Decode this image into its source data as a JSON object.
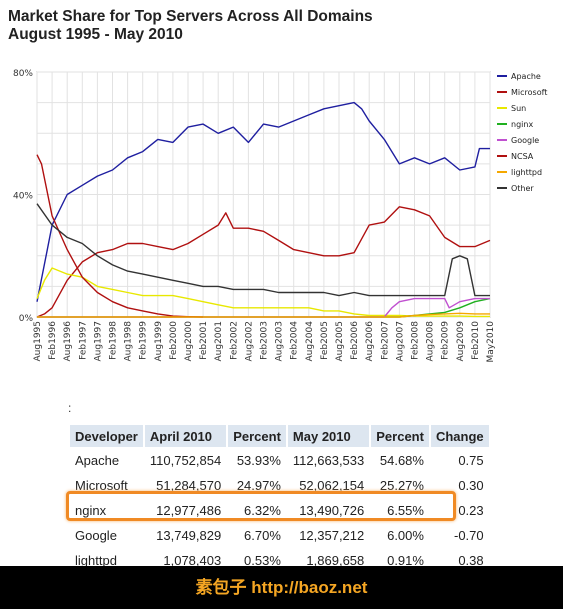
{
  "header": {
    "title_line1": "Market Share for Top Servers Across All Domains",
    "title_line2": "August 1995 - May 2010"
  },
  "chart_data": {
    "type": "line",
    "title": "Market Share for Top Servers Across All Domains August 1995 - May 2010",
    "xlabel": "",
    "ylabel": "",
    "ylim": [
      0,
      80
    ],
    "yticks": [
      "0%",
      "40%",
      "80%"
    ],
    "grid": true,
    "legend_position": "right",
    "x_ticks": [
      "Aug1995",
      "Feb1996",
      "Aug1996",
      "Feb1997",
      "Aug1997",
      "Feb1998",
      "Aug1998",
      "Feb1999",
      "Aug1999",
      "Feb2000",
      "Aug2000",
      "Feb2001",
      "Aug2001",
      "Feb2002",
      "Aug2002",
      "Feb2003",
      "Aug2003",
      "Feb2004",
      "Aug2004",
      "Feb2005",
      "Aug2005",
      "Feb2006",
      "Aug2006",
      "Feb2007",
      "Aug2007",
      "Feb2008",
      "Aug2008",
      "Feb2009",
      "Aug2009",
      "Feb2010",
      "May2010"
    ],
    "series": [
      {
        "name": "Apache",
        "color": "#1f1fa0",
        "points": [
          [
            0,
            5
          ],
          [
            0.6,
            20
          ],
          [
            1,
            30
          ],
          [
            2,
            40
          ],
          [
            3,
            43
          ],
          [
            4,
            46
          ],
          [
            5,
            48
          ],
          [
            6,
            52
          ],
          [
            7,
            54
          ],
          [
            8,
            58
          ],
          [
            9,
            57
          ],
          [
            10,
            62
          ],
          [
            11,
            63
          ],
          [
            12,
            60
          ],
          [
            13,
            62
          ],
          [
            14,
            57
          ],
          [
            15,
            63
          ],
          [
            16,
            62
          ],
          [
            17,
            64
          ],
          [
            18,
            66
          ],
          [
            19,
            68
          ],
          [
            20,
            69
          ],
          [
            21,
            70
          ],
          [
            21.5,
            68
          ],
          [
            22,
            64
          ],
          [
            23,
            58
          ],
          [
            24,
            50
          ],
          [
            25,
            52
          ],
          [
            26,
            50
          ],
          [
            27,
            52
          ],
          [
            28,
            48
          ],
          [
            29,
            49
          ],
          [
            29.3,
            55
          ],
          [
            30,
            55
          ]
        ]
      },
      {
        "name": "Microsoft",
        "color": "#b01010",
        "points": [
          [
            0,
            0
          ],
          [
            0.5,
            1
          ],
          [
            1,
            3
          ],
          [
            2,
            12
          ],
          [
            3,
            18
          ],
          [
            4,
            21
          ],
          [
            5,
            22
          ],
          [
            6,
            24
          ],
          [
            7,
            24
          ],
          [
            8,
            23
          ],
          [
            9,
            22
          ],
          [
            10,
            24
          ],
          [
            11,
            27
          ],
          [
            12,
            30
          ],
          [
            12.5,
            34
          ],
          [
            13,
            29
          ],
          [
            14,
            29
          ],
          [
            15,
            28
          ],
          [
            16,
            25
          ],
          [
            17,
            22
          ],
          [
            18,
            21
          ],
          [
            19,
            20
          ],
          [
            20,
            20
          ],
          [
            21,
            21
          ],
          [
            22,
            30
          ],
          [
            23,
            31
          ],
          [
            24,
            36
          ],
          [
            25,
            35
          ],
          [
            26,
            33
          ],
          [
            27,
            26
          ],
          [
            28,
            23
          ],
          [
            29,
            23
          ],
          [
            30,
            25
          ]
        ]
      },
      {
        "name": "Sun",
        "color": "#e8e800",
        "points": [
          [
            0,
            6
          ],
          [
            0.5,
            12
          ],
          [
            1,
            16
          ],
          [
            2,
            14
          ],
          [
            3,
            13
          ],
          [
            4,
            10
          ],
          [
            5,
            9
          ],
          [
            6,
            8
          ],
          [
            7,
            7
          ],
          [
            8,
            7
          ],
          [
            9,
            7
          ],
          [
            10,
            6
          ],
          [
            11,
            5
          ],
          [
            12,
            4
          ],
          [
            13,
            3
          ],
          [
            14,
            3
          ],
          [
            15,
            3
          ],
          [
            16,
            3
          ],
          [
            17,
            3
          ],
          [
            18,
            3
          ],
          [
            19,
            2
          ],
          [
            20,
            2
          ],
          [
            21,
            1
          ],
          [
            22,
            0.5
          ],
          [
            23,
            0.5
          ],
          [
            24,
            0.5
          ],
          [
            25,
            0.3
          ],
          [
            26,
            0.3
          ],
          [
            27,
            0.3
          ],
          [
            28,
            0.3
          ],
          [
            29,
            0.2
          ],
          [
            30,
            0.2
          ]
        ]
      },
      {
        "name": "nginx",
        "color": "#20b020",
        "points": [
          [
            0,
            0
          ],
          [
            20,
            0
          ],
          [
            24,
            0
          ],
          [
            25,
            0.5
          ],
          [
            26,
            1
          ],
          [
            27,
            1.5
          ],
          [
            28,
            3
          ],
          [
            29,
            5
          ],
          [
            30,
            6
          ]
        ]
      },
      {
        "name": "Google",
        "color": "#c050d0",
        "points": [
          [
            0,
            0
          ],
          [
            20,
            0
          ],
          [
            23,
            0
          ],
          [
            23.5,
            3
          ],
          [
            24,
            5
          ],
          [
            25,
            6
          ],
          [
            26,
            6
          ],
          [
            27,
            6
          ],
          [
            27.3,
            3
          ],
          [
            28,
            5
          ],
          [
            29,
            6
          ],
          [
            30,
            6
          ]
        ]
      },
      {
        "name": "NCSA",
        "color": "#b01010",
        "points": [
          [
            0,
            53
          ],
          [
            0.3,
            50
          ],
          [
            1,
            33
          ],
          [
            2,
            22
          ],
          [
            3,
            13
          ],
          [
            4,
            8
          ],
          [
            5,
            5
          ],
          [
            6,
            3
          ],
          [
            7,
            2
          ],
          [
            8,
            1
          ],
          [
            9,
            0.3
          ],
          [
            10,
            0.1
          ],
          [
            11,
            0
          ]
        ]
      },
      {
        "name": "lighttpd",
        "color": "#f5a800",
        "points": [
          [
            0,
            0
          ],
          [
            24,
            0
          ],
          [
            25,
            0.5
          ],
          [
            26,
            0.8
          ],
          [
            27,
            1
          ],
          [
            28,
            1.2
          ],
          [
            29,
            1
          ],
          [
            30,
            1
          ]
        ]
      },
      {
        "name": "Other",
        "color": "#333333",
        "points": [
          [
            0,
            37
          ],
          [
            1,
            30
          ],
          [
            2,
            26
          ],
          [
            3,
            24
          ],
          [
            4,
            20
          ],
          [
            5,
            17
          ],
          [
            6,
            15
          ],
          [
            7,
            14
          ],
          [
            8,
            13
          ],
          [
            9,
            12
          ],
          [
            10,
            11
          ],
          [
            11,
            10
          ],
          [
            12,
            10
          ],
          [
            13,
            9
          ],
          [
            14,
            9
          ],
          [
            15,
            9
          ],
          [
            16,
            8
          ],
          [
            17,
            8
          ],
          [
            18,
            8
          ],
          [
            19,
            8
          ],
          [
            20,
            7
          ],
          [
            21,
            8
          ],
          [
            22,
            7
          ],
          [
            23,
            7
          ],
          [
            24,
            7
          ],
          [
            25,
            7
          ],
          [
            26,
            7
          ],
          [
            27,
            7
          ],
          [
            27.5,
            19
          ],
          [
            28,
            20
          ],
          [
            28.5,
            19
          ],
          [
            29,
            7
          ],
          [
            30,
            7
          ]
        ]
      }
    ]
  },
  "table": {
    "colon": ":",
    "headers": [
      "Developer",
      "April 2010",
      "Percent",
      "May 2010",
      "Percent",
      "Change"
    ],
    "rows": [
      [
        "Apache",
        "110,752,854",
        "53.93%",
        "112,663,533",
        "54.68%",
        "0.75"
      ],
      [
        "Microsoft",
        "51,284,570",
        "24.97%",
        "52,062,154",
        "25.27%",
        "0.30"
      ],
      [
        "nginx",
        "12,977,486",
        "6.32%",
        "13,490,726",
        "6.55%",
        "0.23"
      ],
      [
        "Google",
        "13,749,829",
        "6.70%",
        "12,357,212",
        "6.00%",
        "-0.70"
      ],
      [
        "lighttpd",
        "1,078,403",
        "0.53%",
        "1,869,658",
        "0.91%",
        "0.38"
      ]
    ],
    "highlight_color": "#f08a24"
  },
  "footer": {
    "text": "素包子 http://baoz.net"
  }
}
